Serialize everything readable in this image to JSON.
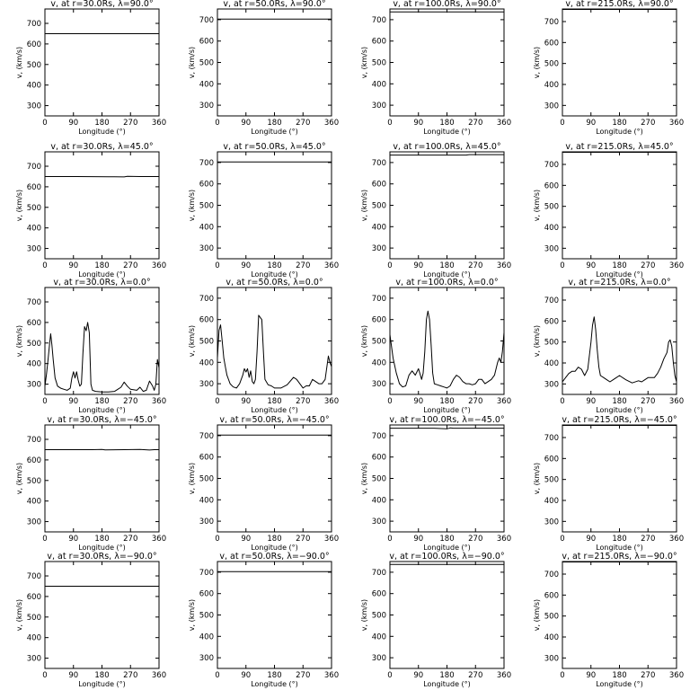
{
  "chart_data": [
    {
      "type": "line",
      "title": "v, at r=30.0Rs, λ=90.0°",
      "xlabel": "Longitude (°)",
      "ylabel": "v, (km/s)",
      "xlim": [
        0,
        360
      ],
      "ylim": [
        250,
        770
      ],
      "xticks": [
        0,
        90,
        180,
        270,
        360
      ],
      "yticks": [
        300,
        400,
        500,
        600,
        700
      ],
      "series": [
        {
          "x": [
            0,
            360
          ],
          "y": [
            650,
            650
          ]
        }
      ]
    },
    {
      "type": "line",
      "title": "v, at r=50.0Rs, λ=90.0°",
      "xlabel": "Longitude (°)",
      "ylabel": "v, (km/s)",
      "xlim": [
        0,
        360
      ],
      "ylim": [
        250,
        750
      ],
      "xticks": [
        0,
        90,
        180,
        270,
        360
      ],
      "yticks": [
        300,
        400,
        500,
        600,
        700
      ],
      "series": [
        {
          "x": [
            0,
            360
          ],
          "y": [
            703,
            703
          ]
        }
      ]
    },
    {
      "type": "line",
      "title": "v, at r=100.0Rs, λ=90.0°",
      "xlabel": "Longitude (°)",
      "ylabel": "v, (km/s)",
      "xlim": [
        0,
        360
      ],
      "ylim": [
        250,
        750
      ],
      "xticks": [
        0,
        90,
        180,
        270,
        360
      ],
      "yticks": [
        300,
        400,
        500,
        600,
        700
      ],
      "series": [
        {
          "x": [
            0,
            360
          ],
          "y": [
            736,
            736
          ]
        }
      ]
    },
    {
      "type": "line",
      "title": "v, at r=215.0Rs, λ=90.0°",
      "xlabel": "Longitude (°)",
      "ylabel": "v, (km/s)",
      "xlim": [
        0,
        360
      ],
      "ylim": [
        250,
        760
      ],
      "xticks": [
        0,
        90,
        180,
        270,
        360
      ],
      "yticks": [
        300,
        400,
        500,
        600,
        700
      ],
      "series": [
        {
          "x": [
            0,
            360
          ],
          "y": [
            758,
            758
          ]
        }
      ]
    },
    {
      "type": "line",
      "title": "v, at r=30.0Rs, λ=45.0°",
      "xlabel": "Longitude (°)",
      "ylabel": "v, (km/s)",
      "xlim": [
        0,
        360
      ],
      "ylim": [
        250,
        770
      ],
      "xticks": [
        0,
        90,
        180,
        270,
        360
      ],
      "yticks": [
        300,
        400,
        500,
        600,
        700
      ],
      "series": [
        {
          "x": [
            0,
            100,
            200,
            250,
            260,
            300,
            360
          ],
          "y": [
            650,
            650,
            649,
            648,
            651,
            650,
            650
          ]
        }
      ]
    },
    {
      "type": "line",
      "title": "v, at r=50.0Rs, λ=45.0°",
      "xlabel": "Longitude (°)",
      "ylabel": "v, (km/s)",
      "xlim": [
        0,
        360
      ],
      "ylim": [
        250,
        750
      ],
      "xticks": [
        0,
        90,
        180,
        270,
        360
      ],
      "yticks": [
        300,
        400,
        500,
        600,
        700
      ],
      "series": [
        {
          "x": [
            0,
            360
          ],
          "y": [
            703,
            703
          ]
        }
      ]
    },
    {
      "type": "line",
      "title": "v, at r=100.0Rs, λ=45.0°",
      "xlabel": "Longitude (°)",
      "ylabel": "v, (km/s)",
      "xlim": [
        0,
        360
      ],
      "ylim": [
        250,
        750
      ],
      "xticks": [
        0,
        90,
        180,
        270,
        360
      ],
      "yticks": [
        300,
        400,
        500,
        600,
        700
      ],
      "series": [
        {
          "x": [
            0,
            240,
            250,
            360
          ],
          "y": [
            735,
            735,
            737,
            737
          ]
        }
      ]
    },
    {
      "type": "line",
      "title": "v, at r=215.0Rs, λ=45.0°",
      "xlabel": "Longitude (°)",
      "ylabel": "v, (km/s)",
      "xlim": [
        0,
        360
      ],
      "ylim": [
        250,
        760
      ],
      "xticks": [
        0,
        90,
        180,
        270,
        360
      ],
      "yticks": [
        300,
        400,
        500,
        600,
        700
      ],
      "series": [
        {
          "x": [
            0,
            360
          ],
          "y": [
            758,
            758
          ]
        }
      ]
    },
    {
      "type": "line",
      "title": "v, at r=30.0Rs, λ=0.0°",
      "xlabel": "Longitude (°)",
      "ylabel": "v, (km/s)",
      "xlim": [
        0,
        360
      ],
      "ylim": [
        250,
        770
      ],
      "xticks": [
        0,
        90,
        180,
        270,
        360
      ],
      "yticks": [
        300,
        400,
        500,
        600,
        700
      ],
      "series": [
        {
          "x": [
            0,
            5,
            10,
            15,
            18,
            22,
            26,
            32,
            40,
            50,
            60,
            70,
            80,
            85,
            90,
            95,
            100,
            105,
            110,
            115,
            120,
            125,
            130,
            135,
            140,
            145,
            150,
            160,
            180,
            200,
            220,
            230,
            240,
            250,
            260,
            270,
            290,
            300,
            310,
            320,
            330,
            340,
            345,
            350,
            355,
            360
          ],
          "y": [
            290,
            350,
            420,
            500,
            545,
            490,
            420,
            330,
            290,
            280,
            275,
            270,
            280,
            330,
            360,
            330,
            360,
            320,
            290,
            300,
            450,
            580,
            560,
            600,
            550,
            300,
            270,
            265,
            262,
            262,
            265,
            275,
            285,
            310,
            290,
            275,
            270,
            285,
            265,
            270,
            315,
            290,
            270,
            300,
            420,
            380
          ]
        }
      ]
    },
    {
      "type": "line",
      "title": "v, at r=50.0Rs, λ=0.0°",
      "xlabel": "Longitude (°)",
      "ylabel": "v, (km/s)",
      "xlim": [
        0,
        360
      ],
      "ylim": [
        250,
        750
      ],
      "xticks": [
        0,
        90,
        180,
        270,
        360
      ],
      "yticks": [
        300,
        400,
        500,
        600,
        700
      ],
      "series": [
        {
          "x": [
            0,
            5,
            10,
            15,
            20,
            25,
            30,
            40,
            50,
            60,
            70,
            80,
            85,
            90,
            95,
            100,
            105,
            110,
            115,
            120,
            125,
            130,
            135,
            140,
            145,
            150,
            160,
            170,
            180,
            200,
            220,
            240,
            250,
            260,
            270,
            280,
            290,
            300,
            320,
            330,
            340,
            350,
            355,
            360
          ],
          "y": [
            420,
            550,
            575,
            500,
            420,
            380,
            340,
            300,
            285,
            280,
            300,
            340,
            370,
            355,
            370,
            330,
            360,
            310,
            300,
            320,
            450,
            620,
            610,
            600,
            450,
            320,
            295,
            290,
            280,
            280,
            295,
            330,
            320,
            300,
            280,
            290,
            290,
            320,
            300,
            300,
            320,
            430,
            400,
            380
          ]
        }
      ]
    },
    {
      "type": "line",
      "title": "v, at r=100.0Rs, λ=0.0°",
      "xlabel": "Longitude (°)",
      "ylabel": "v, (km/s)",
      "xlim": [
        0,
        360
      ],
      "ylim": [
        250,
        750
      ],
      "xticks": [
        0,
        90,
        180,
        270,
        360
      ],
      "yticks": [
        300,
        400,
        500,
        600,
        700
      ],
      "series": [
        {
          "x": [
            0,
            10,
            20,
            30,
            40,
            50,
            60,
            70,
            80,
            90,
            100,
            105,
            110,
            115,
            120,
            125,
            130,
            135,
            140,
            150,
            160,
            170,
            180,
            190,
            200,
            210,
            220,
            230,
            240,
            250,
            260,
            270,
            280,
            290,
            300,
            310,
            320,
            330,
            340,
            345,
            350,
            355,
            360
          ],
          "y": [
            530,
            420,
            350,
            300,
            285,
            290,
            340,
            360,
            340,
            370,
            320,
            350,
            450,
            600,
            640,
            600,
            480,
            350,
            300,
            295,
            290,
            285,
            280,
            290,
            320,
            340,
            330,
            310,
            300,
            300,
            295,
            300,
            320,
            320,
            300,
            310,
            320,
            340,
            400,
            420,
            400,
            450,
            540
          ]
        }
      ]
    },
    {
      "type": "line",
      "title": "v, at r=215.0Rs, λ=0.0°",
      "xlabel": "Longitude (°)",
      "ylabel": "v, (km/s)",
      "xlim": [
        0,
        360
      ],
      "ylim": [
        250,
        760
      ],
      "xticks": [
        0,
        90,
        180,
        270,
        360
      ],
      "yticks": [
        300,
        400,
        500,
        600,
        700
      ],
      "series": [
        {
          "x": [
            0,
            10,
            20,
            30,
            40,
            50,
            60,
            70,
            80,
            90,
            95,
            100,
            105,
            110,
            115,
            120,
            130,
            140,
            150,
            160,
            170,
            180,
            200,
            220,
            240,
            250,
            260,
            270,
            280,
            290,
            300,
            310,
            320,
            330,
            335,
            340,
            345,
            350,
            355,
            360
          ],
          "y": [
            310,
            330,
            350,
            360,
            360,
            380,
            370,
            340,
            370,
            500,
            580,
            620,
            560,
            460,
            380,
            340,
            330,
            320,
            310,
            320,
            330,
            340,
            320,
            305,
            315,
            310,
            320,
            330,
            330,
            330,
            350,
            380,
            420,
            450,
            500,
            510,
            480,
            400,
            340,
            310
          ]
        }
      ]
    },
    {
      "type": "line",
      "title": "v, at r=30.0Rs, λ=−45.0°",
      "xlabel": "Longitude (°)",
      "ylabel": "v, (km/s)",
      "xlim": [
        0,
        360
      ],
      "ylim": [
        250,
        770
      ],
      "xticks": [
        0,
        90,
        180,
        270,
        360
      ],
      "yticks": [
        300,
        400,
        500,
        600,
        700
      ],
      "series": [
        {
          "x": [
            0,
            150,
            180,
            190,
            250,
            300,
            330,
            345,
            360
          ],
          "y": [
            650,
            650,
            651,
            649,
            650,
            651,
            648,
            650,
            650
          ]
        }
      ]
    },
    {
      "type": "line",
      "title": "v, at r=50.0Rs, λ=−45.0°",
      "xlabel": "Longitude (°)",
      "ylabel": "v, (km/s)",
      "xlim": [
        0,
        360
      ],
      "ylim": [
        250,
        750
      ],
      "xticks": [
        0,
        90,
        180,
        270,
        360
      ],
      "yticks": [
        300,
        400,
        500,
        600,
        700
      ],
      "series": [
        {
          "x": [
            0,
            360
          ],
          "y": [
            703,
            703
          ]
        }
      ]
    },
    {
      "type": "line",
      "title": "v, at r=100.0Rs, λ=−45.0°",
      "xlabel": "Longitude (°)",
      "ylabel": "v, (km/s)",
      "xlim": [
        0,
        360
      ],
      "ylim": [
        250,
        750
      ],
      "xticks": [
        0,
        90,
        180,
        270,
        360
      ],
      "yticks": [
        300,
        400,
        500,
        600,
        700
      ],
      "series": [
        {
          "x": [
            0,
            140,
            180,
            190,
            200,
            360
          ],
          "y": [
            735,
            735,
            732,
            736,
            735,
            735
          ]
        }
      ]
    },
    {
      "type": "line",
      "title": "v, at r=215.0Rs, λ=−45.0°",
      "xlabel": "Longitude (°)",
      "ylabel": "v, (km/s)",
      "xlim": [
        0,
        360
      ],
      "ylim": [
        250,
        760
      ],
      "xticks": [
        0,
        90,
        180,
        270,
        360
      ],
      "yticks": [
        300,
        400,
        500,
        600,
        700
      ],
      "series": [
        {
          "x": [
            0,
            360
          ],
          "y": [
            758,
            758
          ]
        }
      ]
    },
    {
      "type": "line",
      "title": "v, at r=30.0Rs, λ=−90.0°",
      "xlabel": "Longitude (°)",
      "ylabel": "v, (km/s)",
      "xlim": [
        0,
        360
      ],
      "ylim": [
        250,
        770
      ],
      "xticks": [
        0,
        90,
        180,
        270,
        360
      ],
      "yticks": [
        300,
        400,
        500,
        600,
        700
      ],
      "series": [
        {
          "x": [
            0,
            360
          ],
          "y": [
            650,
            650
          ]
        }
      ]
    },
    {
      "type": "line",
      "title": "v, at r=50.0Rs, λ=−90.0°",
      "xlabel": "Longitude (°)",
      "ylabel": "v, (km/s)",
      "xlim": [
        0,
        360
      ],
      "ylim": [
        250,
        750
      ],
      "xticks": [
        0,
        90,
        180,
        270,
        360
      ],
      "yticks": [
        300,
        400,
        500,
        600,
        700
      ],
      "series": [
        {
          "x": [
            0,
            360
          ],
          "y": [
            703,
            703
          ]
        }
      ]
    },
    {
      "type": "line",
      "title": "v, at r=100.0Rs, λ=−90.0°",
      "xlabel": "Longitude (°)",
      "ylabel": "v, (km/s)",
      "xlim": [
        0,
        360
      ],
      "ylim": [
        250,
        750
      ],
      "xticks": [
        0,
        90,
        180,
        270,
        360
      ],
      "yticks": [
        300,
        400,
        500,
        600,
        700
      ],
      "series": [
        {
          "x": [
            0,
            360
          ],
          "y": [
            736,
            736
          ]
        }
      ]
    },
    {
      "type": "line",
      "title": "v, at r=215.0Rs, λ=−90.0°",
      "xlabel": "Longitude (°)",
      "ylabel": "v, (km/s)",
      "xlim": [
        0,
        360
      ],
      "ylim": [
        250,
        760
      ],
      "xticks": [
        0,
        90,
        180,
        270,
        360
      ],
      "yticks": [
        300,
        400,
        500,
        600,
        700
      ],
      "series": [
        {
          "x": [
            0,
            360
          ],
          "y": [
            758,
            758
          ]
        }
      ]
    }
  ]
}
